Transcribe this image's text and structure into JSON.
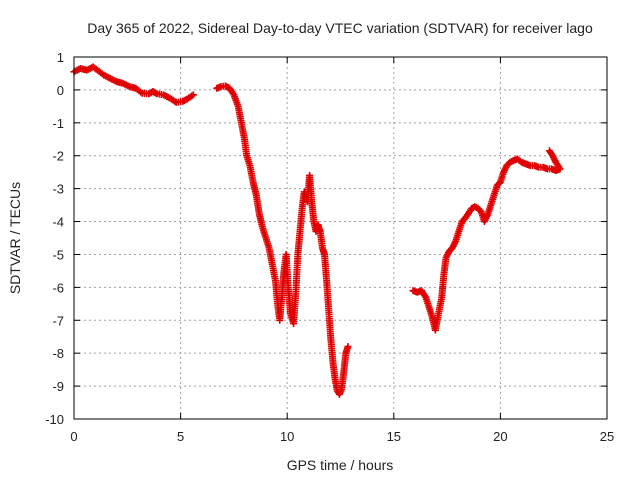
{
  "chart_data": {
    "type": "scatter",
    "title": "Day 365 of 2022, Sidereal Day-to-day VTEC variation (SDTVAR) for receiver lago",
    "xlabel": "GPS time / hours",
    "ylabel": "SDTVAR / TECUs",
    "xlim": [
      0,
      25
    ],
    "ylim": [
      -10,
      1
    ],
    "xticks": [
      0,
      5,
      10,
      15,
      20,
      25
    ],
    "yticks": [
      1,
      0,
      -1,
      -2,
      -3,
      -4,
      -5,
      -6,
      -7,
      -8,
      -9,
      -10
    ],
    "xtick_labels": [
      "0",
      "5",
      "10",
      "15",
      "20",
      "25"
    ],
    "ytick_labels": [
      "1",
      "0",
      "-1",
      "-2",
      "-3",
      "-4",
      "-5",
      "-6",
      "-7",
      "-8",
      "-9",
      "-10"
    ],
    "grid": true,
    "marker": "+",
    "marker_color": "#e00000",
    "series": [
      {
        "name": "SDTVAR",
        "segments": [
          [
            [
              0,
              0.55
            ],
            [
              0.3,
              0.65
            ],
            [
              0.6,
              0.6
            ],
            [
              0.9,
              0.7
            ],
            [
              1.1,
              0.6
            ],
            [
              1.4,
              0.45
            ],
            [
              1.7,
              0.35
            ],
            [
              2.0,
              0.25
            ],
            [
              2.3,
              0.2
            ],
            [
              2.6,
              0.1
            ],
            [
              2.9,
              0.05
            ],
            [
              3.2,
              -0.1
            ],
            [
              3.5,
              -0.12
            ],
            [
              3.7,
              -0.05
            ],
            [
              3.9,
              -0.12
            ],
            [
              4.2,
              -0.15
            ],
            [
              4.5,
              -0.25
            ],
            [
              4.8,
              -0.38
            ],
            [
              5.1,
              -0.35
            ],
            [
              5.3,
              -0.28
            ],
            [
              5.6,
              -0.15
            ]
          ],
          [
            [
              6.7,
              0.05
            ],
            [
              6.9,
              0.1
            ],
            [
              7.1,
              0.12
            ],
            [
              7.3,
              0.05
            ],
            [
              7.5,
              -0.15
            ],
            [
              7.7,
              -0.5
            ],
            [
              7.85,
              -1.0
            ],
            [
              8.0,
              -1.5
            ],
            [
              8.1,
              -2.0
            ],
            [
              8.25,
              -2.3
            ],
            [
              8.4,
              -2.8
            ],
            [
              8.55,
              -3.2
            ],
            [
              8.7,
              -3.8
            ],
            [
              8.85,
              -4.2
            ],
            [
              9.0,
              -4.5
            ],
            [
              9.15,
              -4.8
            ],
            [
              9.3,
              -5.3
            ],
            [
              9.45,
              -5.8
            ],
            [
              9.55,
              -6.5
            ],
            [
              9.65,
              -7.0
            ],
            [
              9.75,
              -6.3
            ],
            [
              9.85,
              -5.5
            ],
            [
              9.95,
              -5.0
            ],
            [
              10.05,
              -6.0
            ],
            [
              10.15,
              -6.8
            ],
            [
              10.3,
              -7.1
            ],
            [
              10.4,
              -6.2
            ],
            [
              10.5,
              -5.0
            ],
            [
              10.6,
              -4.3
            ],
            [
              10.7,
              -3.6
            ],
            [
              10.8,
              -3.1
            ],
            [
              10.95,
              -3.4
            ],
            [
              11.05,
              -2.6
            ],
            [
              11.15,
              -3.4
            ],
            [
              11.25,
              -4.0
            ],
            [
              11.35,
              -4.3
            ],
            [
              11.45,
              -4.1
            ],
            [
              11.55,
              -4.3
            ],
            [
              11.65,
              -4.8
            ],
            [
              11.75,
              -5.0
            ],
            [
              11.85,
              -5.8
            ],
            [
              11.95,
              -6.7
            ],
            [
              12.05,
              -7.6
            ],
            [
              12.15,
              -8.3
            ],
            [
              12.25,
              -8.8
            ],
            [
              12.35,
              -9.15
            ],
            [
              12.45,
              -9.25
            ],
            [
              12.55,
              -9.1
            ],
            [
              12.65,
              -8.6
            ],
            [
              12.75,
              -8.0
            ],
            [
              12.85,
              -7.8
            ]
          ],
          [
            [
              15.9,
              -6.1
            ],
            [
              16.1,
              -6.15
            ],
            [
              16.3,
              -6.1
            ],
            [
              16.5,
              -6.3
            ],
            [
              16.65,
              -6.6
            ],
            [
              16.8,
              -6.9
            ],
            [
              16.95,
              -7.3
            ],
            [
              17.1,
              -6.8
            ],
            [
              17.25,
              -6.3
            ],
            [
              17.35,
              -5.6
            ],
            [
              17.45,
              -5.1
            ],
            [
              17.6,
              -4.9
            ],
            [
              17.75,
              -4.8
            ],
            [
              17.9,
              -4.6
            ],
            [
              18.05,
              -4.3
            ],
            [
              18.2,
              -4.0
            ],
            [
              18.35,
              -3.9
            ],
            [
              18.5,
              -3.75
            ],
            [
              18.65,
              -3.6
            ],
            [
              18.8,
              -3.55
            ],
            [
              18.95,
              -3.6
            ],
            [
              19.1,
              -3.7
            ],
            [
              19.25,
              -4.0
            ],
            [
              19.4,
              -3.8
            ],
            [
              19.55,
              -3.5
            ],
            [
              19.7,
              -3.2
            ],
            [
              19.85,
              -2.9
            ],
            [
              20.0,
              -2.8
            ],
            [
              20.15,
              -2.5
            ],
            [
              20.3,
              -2.3
            ],
            [
              20.45,
              -2.2
            ],
            [
              20.6,
              -2.15
            ],
            [
              20.8,
              -2.1
            ],
            [
              21.0,
              -2.2
            ],
            [
              21.2,
              -2.25
            ],
            [
              21.4,
              -2.3
            ],
            [
              21.6,
              -2.3
            ],
            [
              21.8,
              -2.35
            ],
            [
              22.0,
              -2.35
            ],
            [
              22.2,
              -2.4
            ],
            [
              22.4,
              -2.4
            ],
            [
              22.6,
              -2.45
            ],
            [
              22.8,
              -2.4
            ],
            [
              22.6,
              -2.2
            ],
            [
              22.45,
              -2.0
            ],
            [
              22.3,
              -1.85
            ]
          ]
        ]
      }
    ]
  }
}
